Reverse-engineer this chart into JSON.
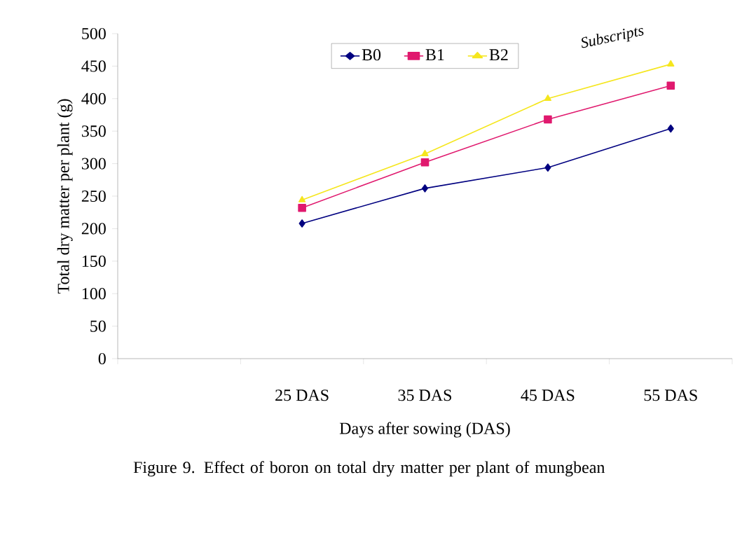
{
  "chart_data": {
    "type": "line",
    "title": "Figure 9. Effect of boron on total dry matter per plant of mungbean",
    "xlabel": "Days after sowing (DAS)",
    "ylabel": "Total dry matter per plant (g)",
    "categories": [
      null,
      "25 DAS",
      "35 DAS",
      "45 DAS",
      "55 DAS"
    ],
    "series": [
      {
        "name": "B0",
        "color": "#000080",
        "marker": "diamond",
        "values": [
          null,
          208,
          262,
          294,
          354
        ]
      },
      {
        "name": "B1",
        "color": "#e0196e",
        "marker": "square",
        "values": [
          null,
          232,
          302,
          368,
          420
        ]
      },
      {
        "name": "B2",
        "color": "#f5e61e",
        "marker": "triangle",
        "values": [
          null,
          244,
          315,
          400,
          453
        ]
      }
    ],
    "ylim": [
      0,
      500
    ],
    "yticks": [
      0,
      50,
      100,
      150,
      200,
      250,
      300,
      350,
      400,
      450,
      500
    ],
    "legend": "top",
    "grid": false,
    "line_style": "solid",
    "annotations": [
      "Subscripts"
    ]
  }
}
